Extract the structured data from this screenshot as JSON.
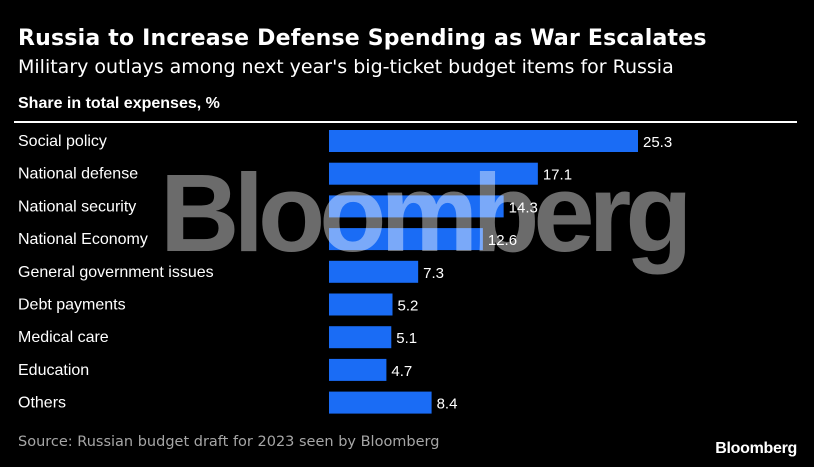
{
  "header": {
    "title": "Russia to Increase Defense Spending as War Escalates",
    "subtitle": "Military outlays among next year's big-ticket budget items for Russia"
  },
  "footer": {
    "source": "Source: Russian budget draft for 2023 seen by Bloomberg",
    "brand": "Bloomberg"
  },
  "watermark": "Bloomberg",
  "colors": {
    "bar": "#1a6cf5",
    "background": "#000000",
    "text": "#ffffff"
  },
  "chart_data": {
    "type": "bar",
    "orientation": "horizontal",
    "ylabel": "Share in total expenses, %",
    "categories": [
      "Social policy",
      "National defense",
      "National security",
      "National Economy",
      "General government issues",
      "Debt payments",
      "Medical care",
      "Education",
      "Others"
    ],
    "values": [
      25.3,
      17.1,
      14.3,
      12.6,
      7.3,
      5.2,
      5.1,
      4.7,
      8.4
    ],
    "value_labels": [
      "25.3",
      "17.1",
      "14.3",
      "12.6",
      "7.3",
      "5.2",
      "5.1",
      "4.7",
      "8.4"
    ],
    "xlim": [
      0,
      25.3
    ],
    "grid": false
  }
}
